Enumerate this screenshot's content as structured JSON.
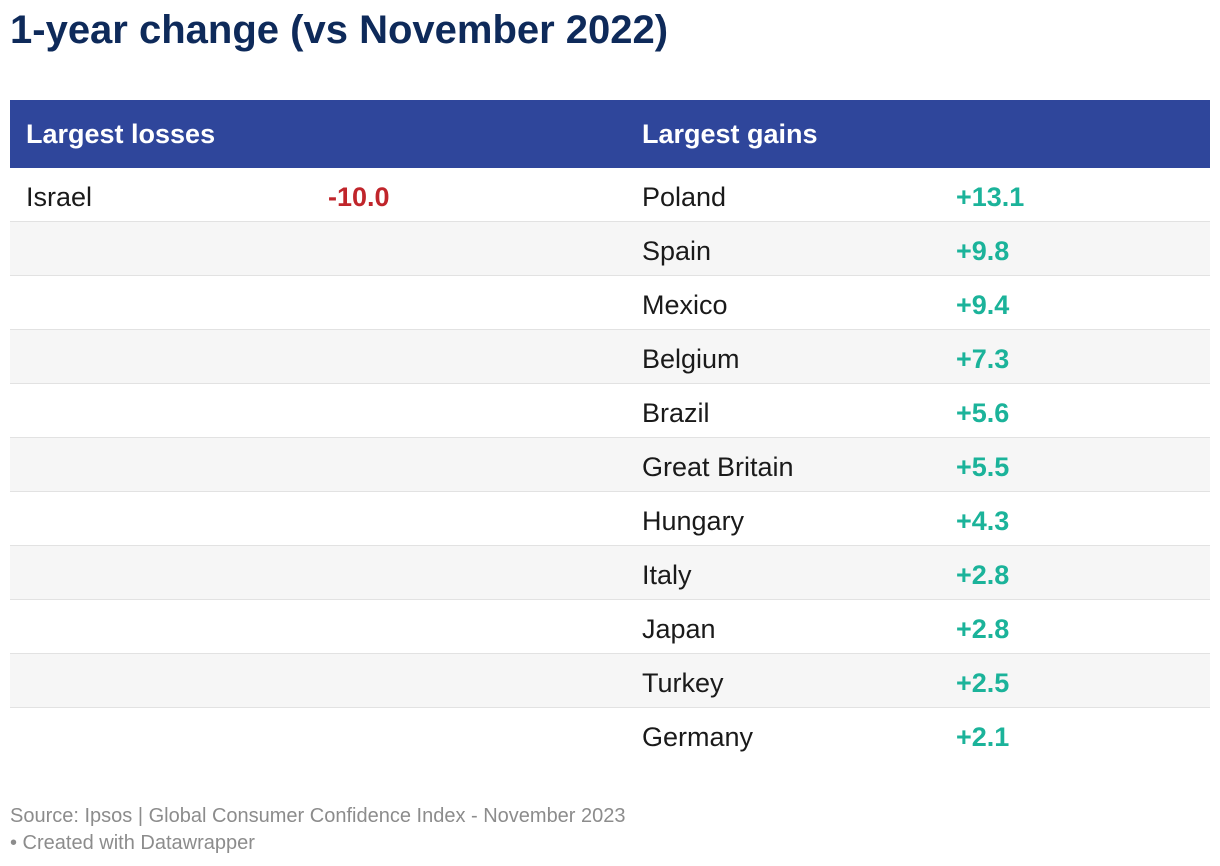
{
  "title": "1-year change (vs November 2022)",
  "headers": {
    "losses": "Largest losses",
    "gains": "Largest gains"
  },
  "colors": {
    "header_bg": "#2f469b",
    "title": "#0e2a5a",
    "loss": "#c0252b",
    "gain": "#1bb39a"
  },
  "rows": [
    {
      "loss_country": "Israel",
      "loss_value": "-10.0",
      "gain_country": "Poland",
      "gain_value": "+13.1"
    },
    {
      "loss_country": "",
      "loss_value": "",
      "gain_country": "Spain",
      "gain_value": "+9.8"
    },
    {
      "loss_country": "",
      "loss_value": "",
      "gain_country": "Mexico",
      "gain_value": "+9.4"
    },
    {
      "loss_country": "",
      "loss_value": "",
      "gain_country": "Belgium",
      "gain_value": "+7.3"
    },
    {
      "loss_country": "",
      "loss_value": "",
      "gain_country": "Brazil",
      "gain_value": "+5.6"
    },
    {
      "loss_country": "",
      "loss_value": "",
      "gain_country": "Great Britain",
      "gain_value": "+5.5"
    },
    {
      "loss_country": "",
      "loss_value": "",
      "gain_country": "Hungary",
      "gain_value": "+4.3"
    },
    {
      "loss_country": "",
      "loss_value": "",
      "gain_country": "Italy",
      "gain_value": "+2.8"
    },
    {
      "loss_country": "",
      "loss_value": "",
      "gain_country": "Japan",
      "gain_value": "+2.8"
    },
    {
      "loss_country": "",
      "loss_value": "",
      "gain_country": "Turkey",
      "gain_value": "+2.5"
    },
    {
      "loss_country": "",
      "loss_value": "",
      "gain_country": "Germany",
      "gain_value": "+2.1"
    }
  ],
  "footer": {
    "source": "Source: Ipsos | Global Consumer Confidence Index - November 2023",
    "credit": "• Created with Datawrapper"
  },
  "chart_data": {
    "type": "table",
    "title": "1-year change (vs November 2022)",
    "columns": [
      "Largest losses",
      "Largest gains"
    ],
    "losses": [
      {
        "country": "Israel",
        "value": -10.0
      }
    ],
    "gains": [
      {
        "country": "Poland",
        "value": 13.1
      },
      {
        "country": "Spain",
        "value": 9.8
      },
      {
        "country": "Mexico",
        "value": 9.4
      },
      {
        "country": "Belgium",
        "value": 7.3
      },
      {
        "country": "Brazil",
        "value": 5.6
      },
      {
        "country": "Great Britain",
        "value": 5.5
      },
      {
        "country": "Hungary",
        "value": 4.3
      },
      {
        "country": "Italy",
        "value": 2.8
      },
      {
        "country": "Japan",
        "value": 2.8
      },
      {
        "country": "Turkey",
        "value": 2.5
      },
      {
        "country": "Germany",
        "value": 2.1
      }
    ]
  }
}
